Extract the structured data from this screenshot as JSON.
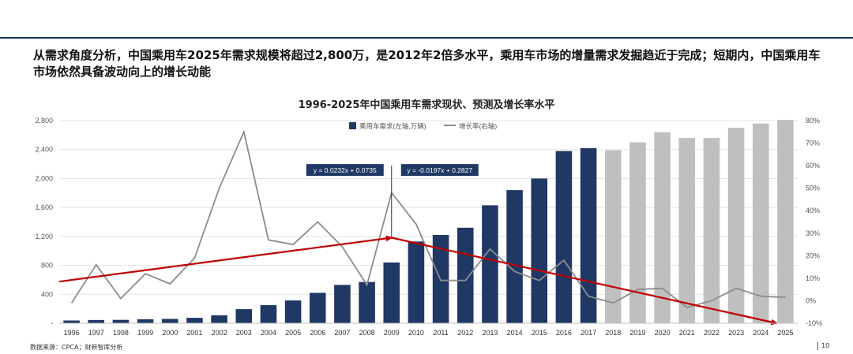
{
  "page": {
    "headline": "从需求角度分析，中国乘用车2025年需求规模将超过2,800万，是2012年2倍多水平，乘用车市场的增量需求发掘趋近于完成；短期内，中国乘用车市场依然具备波动向上的增长动能",
    "chart_title": "1996-2025年中国乘用车需求现状、预测及增长率水平",
    "source": "数据来源：CPCA；财新智库分析",
    "page_number": "10"
  },
  "colors": {
    "actual_bar": "#1f3864",
    "forecast_bar": "#bfbfbf",
    "growth_line": "#8c8c8c",
    "trend_arrow": "#c00000",
    "annotation_box": "#1f3864"
  },
  "chart_data": {
    "type": "bar",
    "title": "1996-2025年中国乘用车需求现状、预测及增长率水平",
    "categories": [
      "1996",
      "1997",
      "1998",
      "1999",
      "2000",
      "2001",
      "2002",
      "2003",
      "2004",
      "2005",
      "2006",
      "2007",
      "2008",
      "2009",
      "2010",
      "2011",
      "2012",
      "2013",
      "2014",
      "2015",
      "2016",
      "2017",
      "2018",
      "2019",
      "2020",
      "2021",
      "2022",
      "2023",
      "2024",
      "2025"
    ],
    "series": [
      {
        "name": "乘用车需求(左轴,万辆)",
        "type": "bar",
        "axis": "left",
        "values": [
          38,
          45,
          47,
          55,
          60,
          75,
          110,
          195,
          250,
          315,
          420,
          530,
          570,
          840,
          1130,
          1220,
          1320,
          1630,
          1840,
          2000,
          2380,
          2420,
          2390,
          2500,
          2640,
          2560,
          2560,
          2700,
          2760,
          2810
        ],
        "forecast_from": "2018"
      },
      {
        "name": "增长率(右轴)",
        "type": "line",
        "axis": "right",
        "values": [
          -1,
          16,
          1,
          12,
          7.5,
          19,
          50,
          75,
          27,
          25,
          35,
          24,
          7,
          48,
          34,
          9,
          9,
          23,
          13,
          9,
          18,
          2,
          -1,
          5,
          5.5,
          -3,
          0,
          5.5,
          2,
          1.5
        ]
      }
    ],
    "y_left": {
      "ylim": [
        0,
        2800
      ],
      "ticks": [
        "-",
        "400",
        "800",
        "1,200",
        "1,600",
        "2,000",
        "2,400",
        "2,800"
      ]
    },
    "y_right": {
      "ylim": [
        -10,
        80
      ],
      "ticks": [
        "-10%",
        "0%",
        "10%",
        "20%",
        "30%",
        "40%",
        "50%",
        "60%",
        "70%",
        "80%"
      ]
    },
    "trend_lines": [
      {
        "label": "y = 0.0232x + 0.0735",
        "from": {
          "x": "1996",
          "y": 8.5
        },
        "to": {
          "x": "2009",
          "y": 28
        }
      },
      {
        "label": "y = -0.0197x + 0.2827",
        "from": {
          "x": "2009",
          "y": 28
        },
        "to": {
          "x": "2025",
          "y": -10
        }
      }
    ],
    "reference_year": "2009",
    "legend": "top-center",
    "grid": true
  }
}
